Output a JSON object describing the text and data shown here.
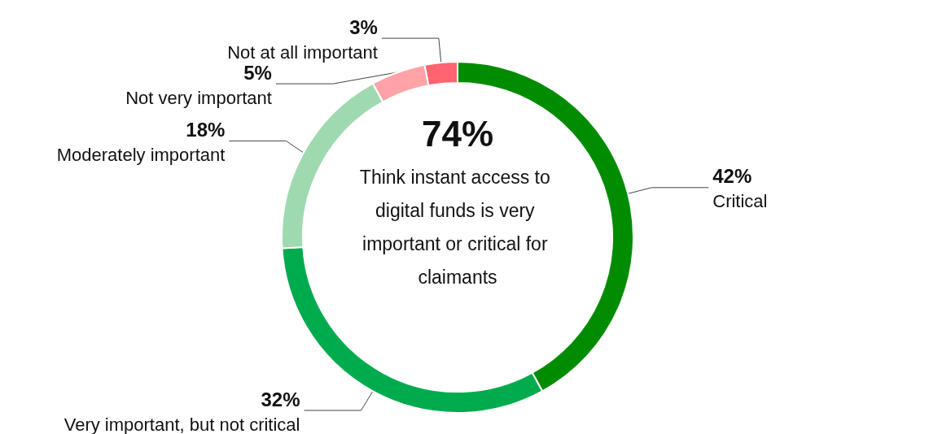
{
  "chart_data": {
    "type": "donut",
    "categories": [
      "Critical",
      "Very important, but not critical",
      "Moderately important",
      "Not very important",
      "Not at all important"
    ],
    "values": [
      42,
      32,
      18,
      5,
      3
    ],
    "colors": [
      "#008c00",
      "#00ab4e",
      "#9fd9b0",
      "#ffa3a8",
      "#ff6470"
    ],
    "value_labels": [
      "42%",
      "32%",
      "18%",
      "5%",
      "3%"
    ],
    "annotations": [
      "74%",
      "Think instant access to digital funds is very important or critical for claimants"
    ]
  }
}
